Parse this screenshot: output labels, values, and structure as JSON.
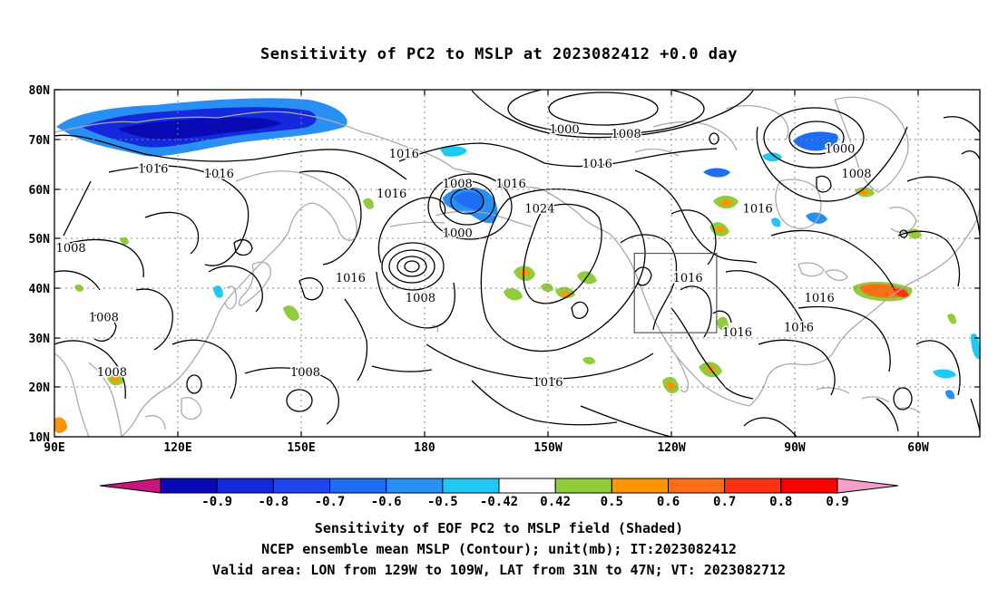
{
  "title": "Sensitivity of PC2 to MSLP at 2023082412 +0.0 day",
  "lat_labels": [
    "80N",
    "70N",
    "60N",
    "50N",
    "40N",
    "30N",
    "20N",
    "10N"
  ],
  "lon_labels": [
    "90E",
    "120E",
    "150E",
    "180",
    "150W",
    "120W",
    "90W",
    "60W"
  ],
  "contour_labels": [
    {
      "text": "1000",
      "lon": -146,
      "lat": 72
    },
    {
      "text": "1008",
      "lon": -131,
      "lat": 71
    },
    {
      "text": "1000",
      "lon": -79,
      "lat": 68
    },
    {
      "text": "1008",
      "lon": -75,
      "lat": 63
    },
    {
      "text": "1016",
      "lon": 175,
      "lat": 67
    },
    {
      "text": "1016",
      "lon": -138,
      "lat": 65
    },
    {
      "text": "1016",
      "lon": 114,
      "lat": 64
    },
    {
      "text": "1016",
      "lon": 130,
      "lat": 63
    },
    {
      "text": "1016",
      "lon": -159,
      "lat": 61
    },
    {
      "text": "1008",
      "lon": -172,
      "lat": 61
    },
    {
      "text": "1016",
      "lon": 172,
      "lat": 59
    },
    {
      "text": "1024",
      "lon": -152,
      "lat": 56
    },
    {
      "text": "1016",
      "lon": -99,
      "lat": 56
    },
    {
      "text": "1000",
      "lon": -172,
      "lat": 51
    },
    {
      "text": "1008",
      "lon": 94,
      "lat": 48
    },
    {
      "text": "1016",
      "lon": 162,
      "lat": 42
    },
    {
      "text": "1016",
      "lon": -116,
      "lat": 42
    },
    {
      "text": "1008",
      "lon": 179,
      "lat": 38
    },
    {
      "text": "1016",
      "lon": -84,
      "lat": 38
    },
    {
      "text": "1008",
      "lon": 102,
      "lat": 34
    },
    {
      "text": "1016",
      "lon": -104,
      "lat": 31
    },
    {
      "text": "1016",
      "lon": -89,
      "lat": 32
    },
    {
      "text": "1008",
      "lon": 104,
      "lat": 23
    },
    {
      "text": "1008",
      "lon": 151,
      "lat": 23
    },
    {
      "text": "1016",
      "lon": -150,
      "lat": 21
    }
  ],
  "colorbar": {
    "ticks": [
      "-0.9",
      "-0.8",
      "-0.7",
      "-0.6",
      "-0.5",
      "-0.42",
      "0.42",
      "0.5",
      "0.6",
      "0.7",
      "0.8",
      "0.9"
    ],
    "colors": [
      "#c8147d",
      "#0a0ab4",
      "#1428dc",
      "#1e46f0",
      "#1e6ef5",
      "#2890f5",
      "#20c8f5",
      "#ffffff",
      "#90cc3c",
      "#ff9600",
      "#ff6e14",
      "#ff3214",
      "#ff0000",
      "#f5a0c8"
    ]
  },
  "captions": {
    "line1": "Sensitivity of EOF PC2 to MSLP field (Shaded)",
    "line2": "NCEP ensemble mean MSLP (Contour); unit(mb); IT:2023082412",
    "line3": "Valid area: LON from 129W to 109W, LAT from 31N to 47N; VT: 2023082712"
  },
  "valid_area": {
    "lon_min": -129,
    "lon_max": -109,
    "lat_min": 31,
    "lat_max": 47
  },
  "colors": {
    "coast": "#aaaaaa",
    "contour": "#000000",
    "grid": "#888888"
  }
}
